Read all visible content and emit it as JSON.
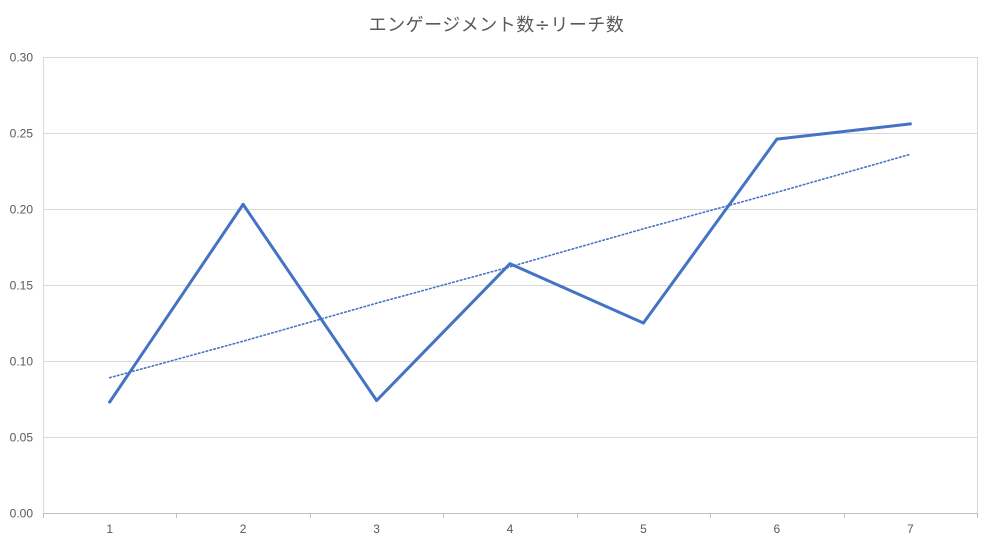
{
  "chart_data": {
    "type": "line",
    "title": "エンゲージメント数÷リーチ数",
    "xlabel": "",
    "ylabel": "",
    "x": [
      1,
      2,
      3,
      4,
      5,
      6,
      7
    ],
    "x_tick_labels": [
      "1",
      "2",
      "3",
      "4",
      "5",
      "6",
      "7"
    ],
    "y_tick_labels": [
      "0.00",
      "0.05",
      "0.10",
      "0.15",
      "0.20",
      "0.25",
      "0.30"
    ],
    "ylim": [
      0,
      0.3
    ],
    "y_tick_step": 0.05,
    "series": [
      {
        "values": [
          0.073,
          0.203,
          0.074,
          0.164,
          0.125,
          0.246,
          0.256
        ],
        "color": "#4472C4",
        "style": "solid"
      }
    ],
    "trendline": {
      "type": "linear",
      "values": [
        0.089,
        0.113,
        0.138,
        0.162,
        0.187,
        0.211,
        0.236
      ],
      "color": "#4472C4",
      "style": "dotted"
    },
    "grid": true,
    "legend": "none"
  }
}
